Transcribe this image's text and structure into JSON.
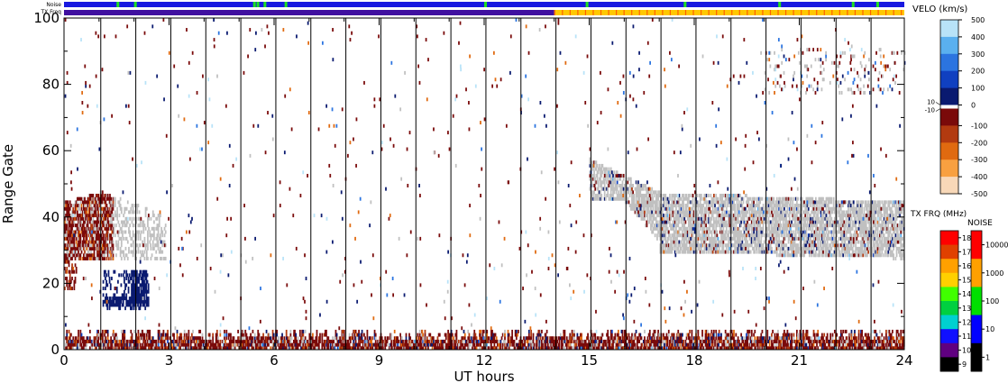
{
  "chart_data": {
    "type": "heatmap",
    "xlabel": "UT hours",
    "ylabel": "Range Gate",
    "x_ticks": [
      "0",
      "3",
      "6",
      "9",
      "12",
      "15",
      "18",
      "21",
      "24"
    ],
    "y_ticks": [
      "0",
      "20",
      "40",
      "60",
      "80",
      "100"
    ],
    "xlim": [
      0,
      24
    ],
    "ylim": [
      0,
      100
    ],
    "scan_boundaries_ut": [
      1.05,
      2.05,
      3.05,
      4.05,
      5.05,
      6.05,
      7.05,
      8.05,
      9.05,
      10.05,
      11.05,
      12.05,
      13.05,
      14.05,
      15.05,
      16.05,
      17.05,
      18.05,
      19.05,
      20.05,
      21.05,
      22.05,
      23.05
    ],
    "velocity_scale": {
      "title": "VELO (km/s)",
      "tick_labels": [
        "500",
        "400",
        "300",
        "200",
        "100",
        "0",
        "-100",
        "-200",
        "-300",
        "-400",
        "-500"
      ],
      "values": [
        500,
        400,
        300,
        200,
        100,
        0,
        -100,
        -200,
        -300,
        -400,
        -500
      ],
      "small_labels": [
        "10",
        "-10"
      ],
      "colors_positive": [
        "#0a1a70",
        "#1040c0",
        "#2b74e0",
        "#5ab0ef",
        "#b8e3f8"
      ],
      "colors_negative": [
        "#7a0a0a",
        "#b23a10",
        "#e06a10",
        "#f8a040",
        "#f8d8b8"
      ],
      "ground_scatter_color": "#c0c0c0"
    },
    "txfreq_scale": {
      "title": "TX FRQ (MHz)",
      "tick_labels": [
        "18",
        "17",
        "16",
        "15",
        "14",
        "13",
        "12",
        "11",
        "10",
        "9"
      ],
      "colors": [
        "#ff0000",
        "#e04000",
        "#ffa000",
        "#ffd000",
        "#40ff00",
        "#00d040",
        "#00d0d0",
        "#1010ff",
        "#600080",
        "#000000"
      ]
    },
    "noise_scale": {
      "title": "NOISE",
      "tick_labels": [
        "10000",
        "1000",
        "100",
        "10",
        "1"
      ],
      "colors": [
        "#ff0000",
        "#ffa000",
        "#00e000",
        "#0000ff",
        "#000000"
      ]
    },
    "top_bars": {
      "noise_label": "Noise",
      "txfreq_label": "TX Freq",
      "noise_color": "#1818e0",
      "noise_green_marks_ut": [
        1.5,
        2.0,
        5.4,
        5.5,
        5.7,
        6.3,
        12.0,
        14.9,
        17.7,
        20.4,
        22.5,
        23.2
      ],
      "txfreq_colors": {
        "before": "#4010a0",
        "after": "#ffc800",
        "after_mark": "#ff6000"
      },
      "txfreq_change_ut": 14.0
    },
    "regions": [
      {
        "label": "ground-scatter-morning",
        "ut": [
          0.0,
          2.9
        ],
        "gate": [
          28,
          47
        ]
      },
      {
        "label": "negative-velocity-morning",
        "ut": [
          0.0,
          1.4
        ],
        "gate": [
          30,
          48
        ]
      },
      {
        "label": "positive-velocity-patch",
        "ut": [
          1.1,
          2.4
        ],
        "gate": [
          12,
          23
        ]
      },
      {
        "label": "near-range-negative-band",
        "ut": [
          0.0,
          24.0
        ],
        "gate": [
          0,
          8
        ]
      },
      {
        "label": "ground-scatter-evening",
        "ut": [
          15.0,
          24.0
        ],
        "gate": [
          28,
          58
        ]
      },
      {
        "label": "ground-scatter-late-far",
        "ut": [
          20.0,
          24.0
        ],
        "gate": [
          76,
          92
        ]
      }
    ]
  }
}
